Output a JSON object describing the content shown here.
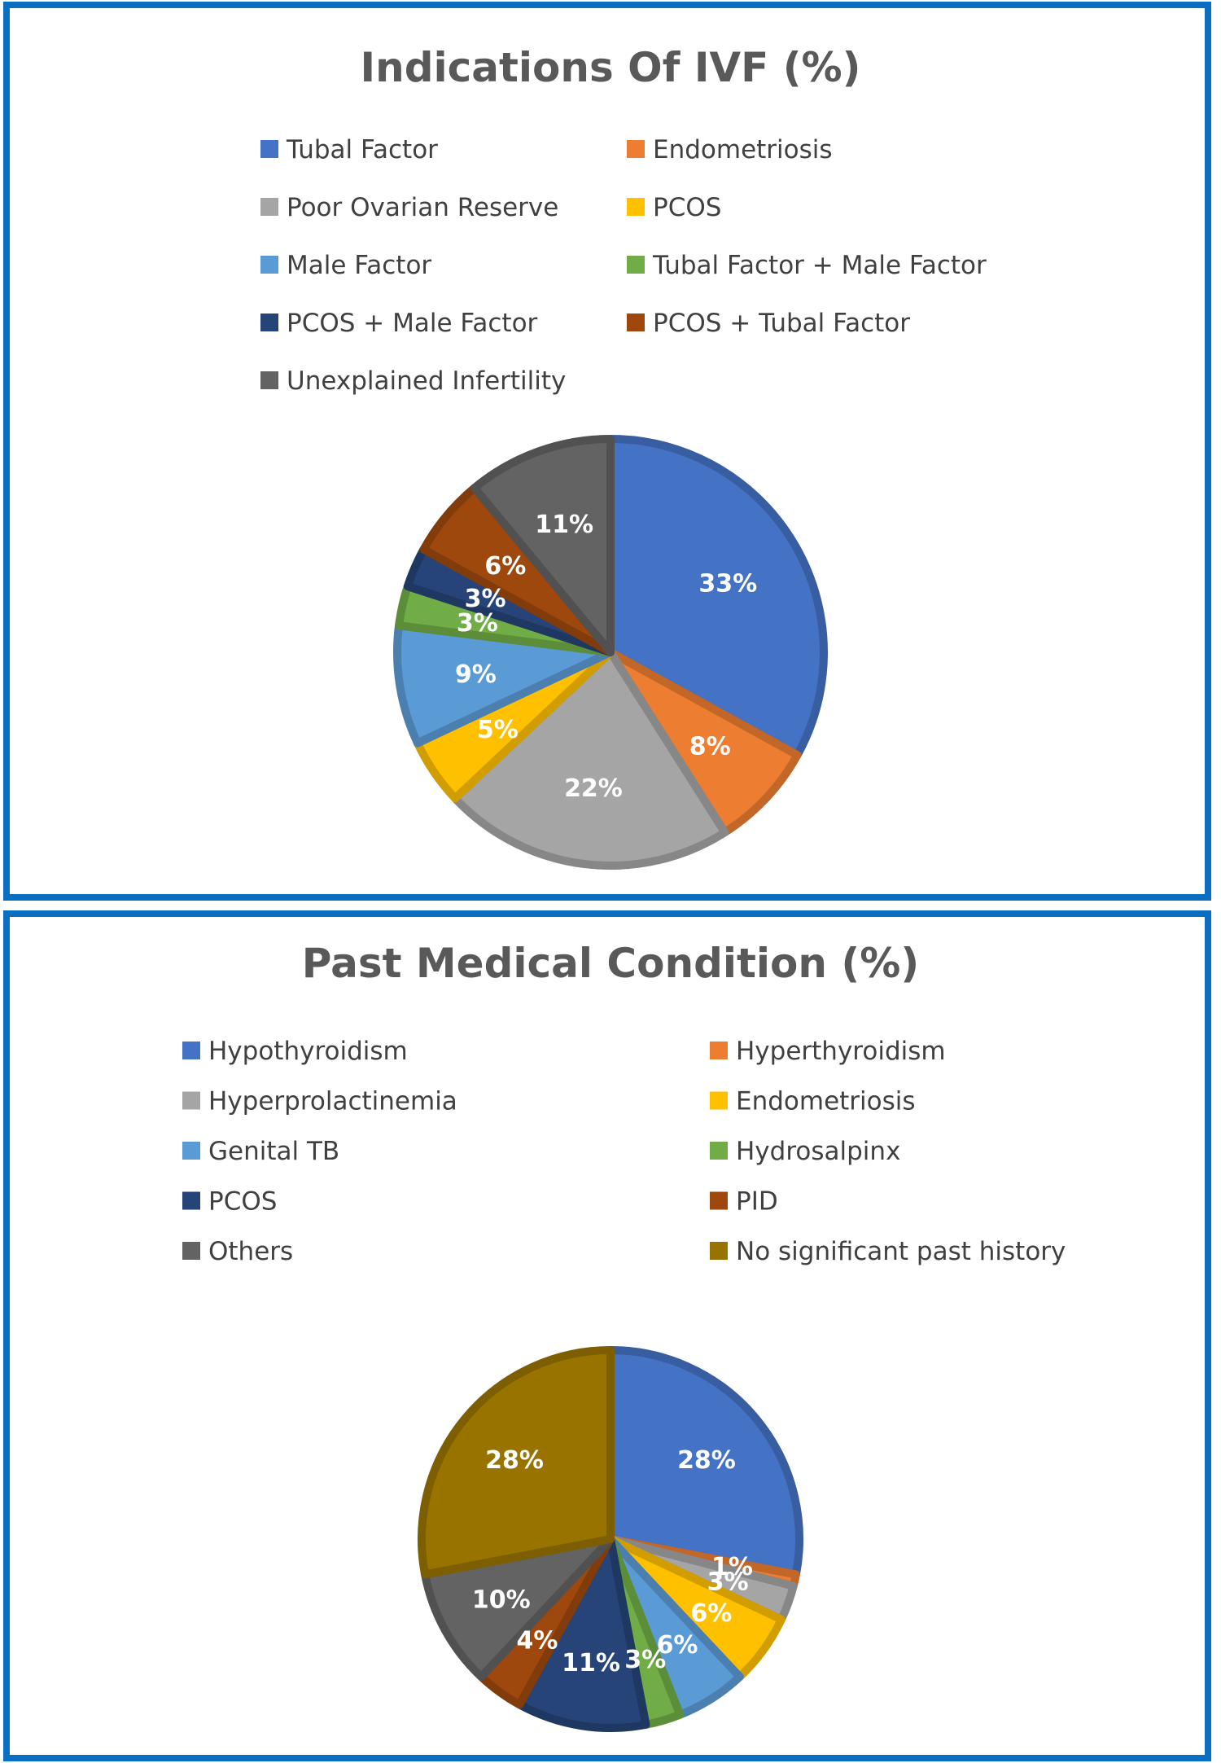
{
  "chart_data": [
    {
      "type": "pie",
      "title": "Indications Of IVF (%)",
      "categories": [
        "Tubal Factor",
        "Endometriosis",
        "Poor Ovarian Reserve",
        "PCOS",
        "Male Factor",
        "Tubal Factor + Male Factor",
        "PCOS + Male Factor",
        "PCOS + Tubal Factor",
        "Unexplained Infertility"
      ],
      "values": [
        33,
        8,
        22,
        5,
        9,
        3,
        3,
        6,
        11
      ],
      "data_labels": [
        "33%",
        "8%",
        "22%",
        "5%",
        "9%",
        "3%",
        "3%",
        "6%",
        "11%"
      ],
      "colors": [
        "#4472c4",
        "#ed7d31",
        "#a5a5a5",
        "#ffc000",
        "#5b9bd5",
        "#70ad47",
        "#264478",
        "#9e480e",
        "#636363"
      ],
      "legend": "top"
    },
    {
      "type": "pie",
      "title": "Past Medical Condition (%)",
      "categories": [
        "Hypothyroidism",
        "Hyperthyroidism",
        "Hyperprolactinemia",
        "Endometriosis",
        "Genital TB",
        "Hydrosalpinx",
        "PCOS",
        "PID",
        "Others",
        "No significant  past history"
      ],
      "values": [
        28,
        1,
        3,
        6,
        6,
        3,
        11,
        4,
        10,
        28
      ],
      "data_labels": [
        "28%",
        "1%",
        "3%",
        "6%",
        "6%",
        "3%",
        "11%",
        "4%",
        "10%",
        "28%"
      ],
      "colors": [
        "#4472c4",
        "#ed7d31",
        "#a5a5a5",
        "#ffc000",
        "#5b9bd5",
        "#70ad47",
        "#264478",
        "#9e480e",
        "#636363",
        "#997300"
      ],
      "legend": "top"
    }
  ]
}
